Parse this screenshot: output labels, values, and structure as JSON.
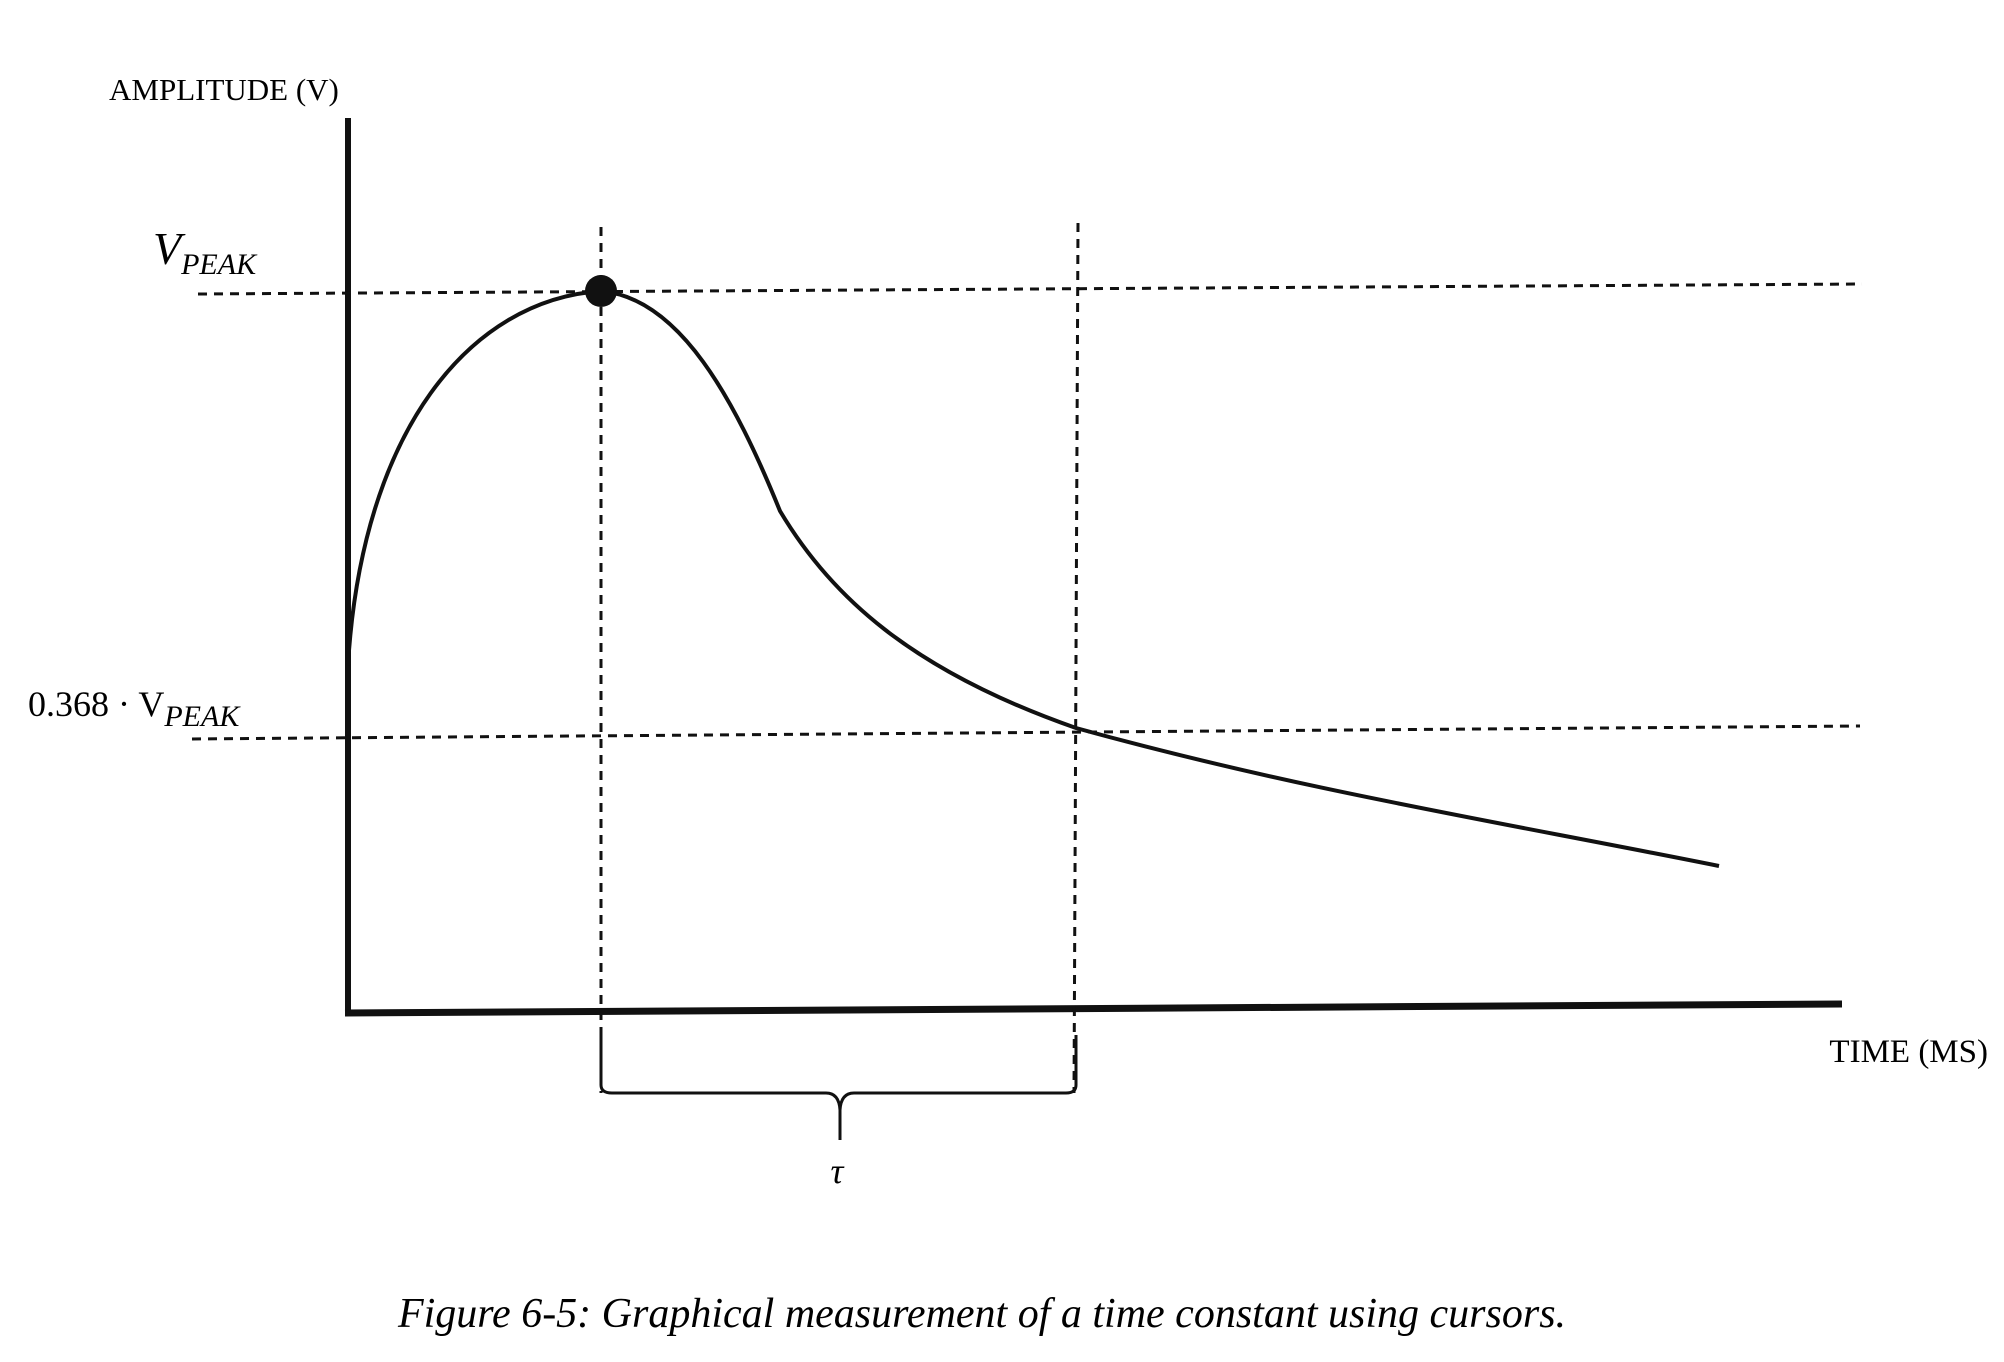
{
  "axes": {
    "y_label": "AMPLITUDE (V)",
    "x_label": "TIME (MS)"
  },
  "levels": [
    {
      "main": "V",
      "sub": "PEAK"
    },
    {
      "main": "0.368 · V",
      "sub": "PEAK"
    }
  ],
  "interval_label": "τ",
  "caption": "Figure 6-5: Graphical measurement of a time constant using cursors."
}
